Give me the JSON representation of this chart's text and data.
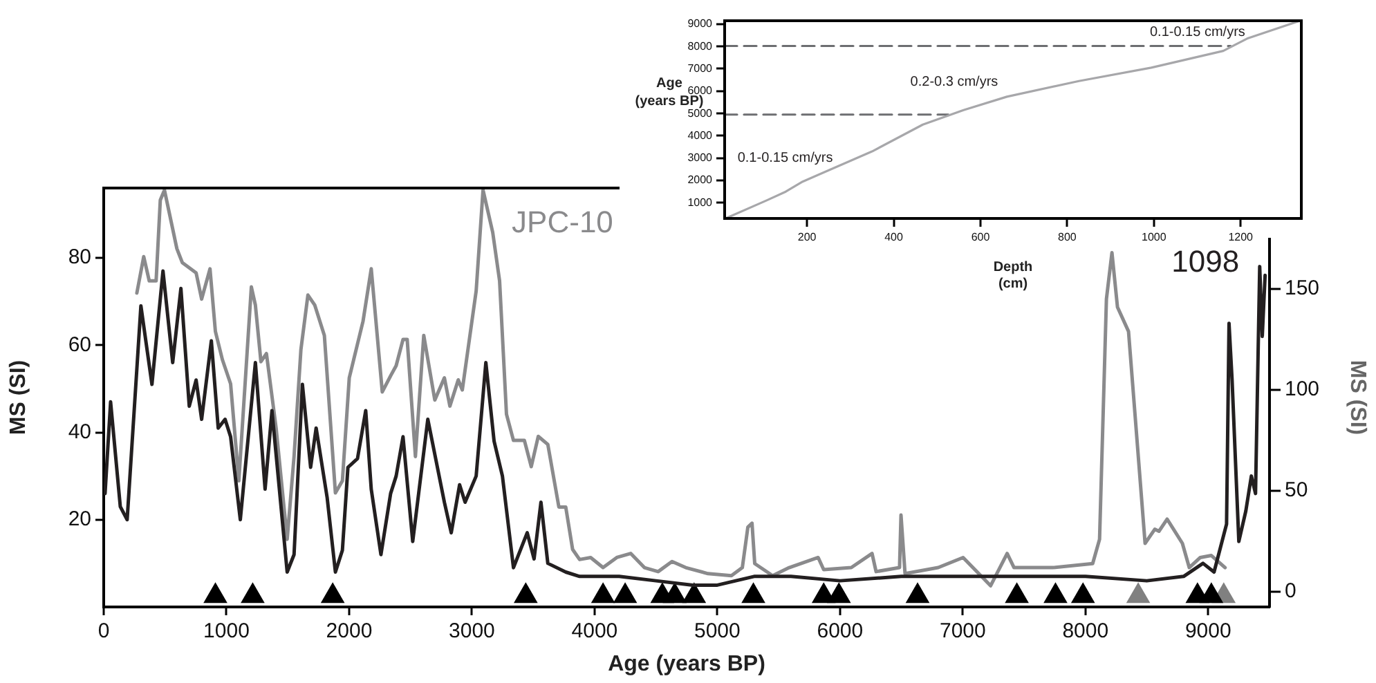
{
  "chart_data": [
    {
      "type": "line",
      "xlabel": "Age (years BP)",
      "ylabel": "MS (SI)",
      "y2label": "MS (SI)",
      "xlim": [
        0,
        9500
      ],
      "xticks": [
        0,
        1000,
        2000,
        3000,
        4000,
        5000,
        6000,
        7000,
        8000,
        9000
      ],
      "ylim": [
        0,
        96
      ],
      "yticks": [
        20,
        40,
        60,
        80
      ],
      "y2lim": [
        -7.5,
        200
      ],
      "y2ticks": [
        0,
        50,
        100,
        150
      ],
      "series": [
        {
          "name": "1098",
          "color": "#231f20",
          "x": [
            11,
            56,
            135,
            191,
            303,
            393,
            483,
            562,
            629,
            697,
            753,
            798,
            877,
            933,
            989,
            1034,
            1113,
            1236,
            1315,
            1371,
            1495,
            1551,
            1619,
            1686,
            1731,
            1821,
            1888,
            1945,
            1990,
            2068,
            2135,
            2180,
            2259,
            2338,
            2383,
            2439,
            2518,
            2641,
            2776,
            2832,
            2900,
            2945,
            3035,
            3114,
            3181,
            3249,
            3339,
            3451,
            3507,
            3563,
            3619,
            3765,
            3878,
            4200,
            4500,
            4800,
            5000,
            5300,
            5600,
            6000,
            6500,
            7000,
            7500,
            8000,
            8500,
            8800,
            8958,
            9048,
            9150,
            9170,
            9195,
            9250,
            9307,
            9352,
            9386,
            9420,
            9441,
            9464
          ],
          "values": [
            26,
            47,
            23,
            20,
            69,
            51,
            77,
            56,
            73,
            46,
            52,
            43,
            61,
            41,
            43,
            39,
            20,
            56,
            27,
            45,
            8,
            12,
            51,
            32,
            41,
            25,
            8,
            13,
            32,
            34,
            45,
            27,
            12,
            26,
            30,
            39,
            15,
            43,
            24,
            17,
            28,
            24,
            30,
            56,
            38,
            30,
            9,
            17,
            11,
            24,
            10,
            8,
            7,
            7,
            6,
            5,
            5,
            7,
            7,
            6,
            7,
            7,
            7,
            7,
            6,
            7,
            10,
            8,
            19,
            65,
            52,
            15,
            22,
            30,
            26,
            78,
            62,
            76
          ]
        },
        {
          "name": "JPC-10",
          "color": "#8a8a8c",
          "axis": "y2",
          "x": [
            270,
            326,
            371,
            427,
            461,
            495,
            596,
            641,
            753,
            798,
            866,
            910,
            967,
            1034,
            1101,
            1203,
            1236,
            1281,
            1326,
            1405,
            1495,
            1551,
            1607,
            1664,
            1720,
            1798,
            1888,
            1945,
            2001,
            2113,
            2180,
            2270,
            2338,
            2383,
            2439,
            2473,
            2540,
            2608,
            2698,
            2776,
            2821,
            2889,
            2922,
            3035,
            3091,
            3170,
            3226,
            3282,
            3339,
            3428,
            3484,
            3541,
            3619,
            3709,
            3765,
            3821,
            3878,
            3968,
            4069,
            4181,
            4294,
            4406,
            4518,
            4631,
            4743,
            4924,
            5115,
            5204,
            5249,
            5283,
            5305,
            5451,
            5586,
            5822,
            5867,
            6092,
            6261,
            6294,
            6485,
            6497,
            6530,
            6800,
            7003,
            7227,
            7362,
            7418,
            7733,
            8059,
            8115,
            8171,
            8216,
            8261,
            8351,
            8486,
            8565,
            8599,
            8666,
            8790,
            8846,
            8936,
            9026,
            9138
          ],
          "values": [
            148,
            166,
            154,
            154,
            194,
            199,
            170,
            163,
            158,
            145,
            160,
            129,
            115,
            103,
            55,
            151,
            142,
            114,
            118,
            81,
            26,
            67,
            120,
            147,
            142,
            127,
            49,
            55,
            106,
            134,
            160,
            99,
            107,
            112,
            125,
            125,
            67,
            127,
            95,
            106,
            92,
            105,
            100,
            149,
            199,
            178,
            154,
            88,
            75,
            75,
            62,
            77,
            73,
            42,
            42,
            21,
            16,
            17,
            12,
            17,
            19,
            12,
            10,
            15,
            12,
            9,
            8,
            12,
            32,
            34,
            14,
            8,
            12,
            17,
            11,
            12,
            19,
            10,
            12,
            38,
            9,
            12,
            17,
            3,
            19,
            12,
            12,
            14,
            26,
            145,
            168,
            141,
            129,
            24,
            31,
            30,
            36,
            24,
            12,
            17,
            18,
            12
          ]
        },
        {
          "type": "scatter",
          "color": "#000000",
          "marker": "triangle",
          "x": [
            910,
            1214,
            1866,
            3439,
            4069,
            4249,
            4552,
            4653,
            4811,
            5294,
            5867,
            5991,
            6632,
            7441,
            7756,
            7980,
            8913,
            9026
          ],
          "values": [
            2.5,
            2.5,
            2.5,
            2.5,
            2.5,
            2.5,
            2.5,
            2.5,
            2.5,
            2.5,
            2.5,
            2.5,
            2.5,
            2.5,
            2.5,
            2.5,
            2.5,
            2.5
          ]
        },
        {
          "type": "scatter",
          "color": "#808080",
          "marker": "triangle",
          "x": [
            8430,
            9127
          ],
          "values": [
            2.5,
            2.5
          ]
        }
      ]
    },
    {
      "type": "line",
      "xlabel": "Depth (cm)",
      "ylabel": "Age (years BP)",
      "xlim": [
        10,
        1340
      ],
      "xticks": [
        200,
        400,
        600,
        800,
        1000,
        1200
      ],
      "ylim": [
        300,
        9150
      ],
      "yticks": [
        1000,
        2000,
        3000,
        4000,
        5000,
        6000,
        7000,
        8000,
        9000
      ],
      "annotations": [
        "0.1-0.15 cm/yrs",
        "0.2-0.3 cm/yrs",
        "0.1-0.15 cm/yrs"
      ],
      "series": [
        {
          "color": "#a7a7aa",
          "x": [
            12,
            106,
            151,
            190,
            350,
            467,
            561,
            661,
            827,
            994,
            1160,
            1215,
            1337
          ],
          "values": [
            300,
            1100,
            1500,
            1950,
            3300,
            4500,
            5150,
            5750,
            6450,
            7050,
            7800,
            8350,
            9150
          ]
        },
        {
          "color": "#6d6e71",
          "line_style": "dashed",
          "x": [
            10,
            1177
          ],
          "values": [
            8020,
            8020
          ]
        },
        {
          "color": "#6d6e71",
          "line_style": "dashed",
          "x": [
            10,
            526
          ],
          "values": [
            4950,
            4950
          ]
        }
      ]
    }
  ]
}
